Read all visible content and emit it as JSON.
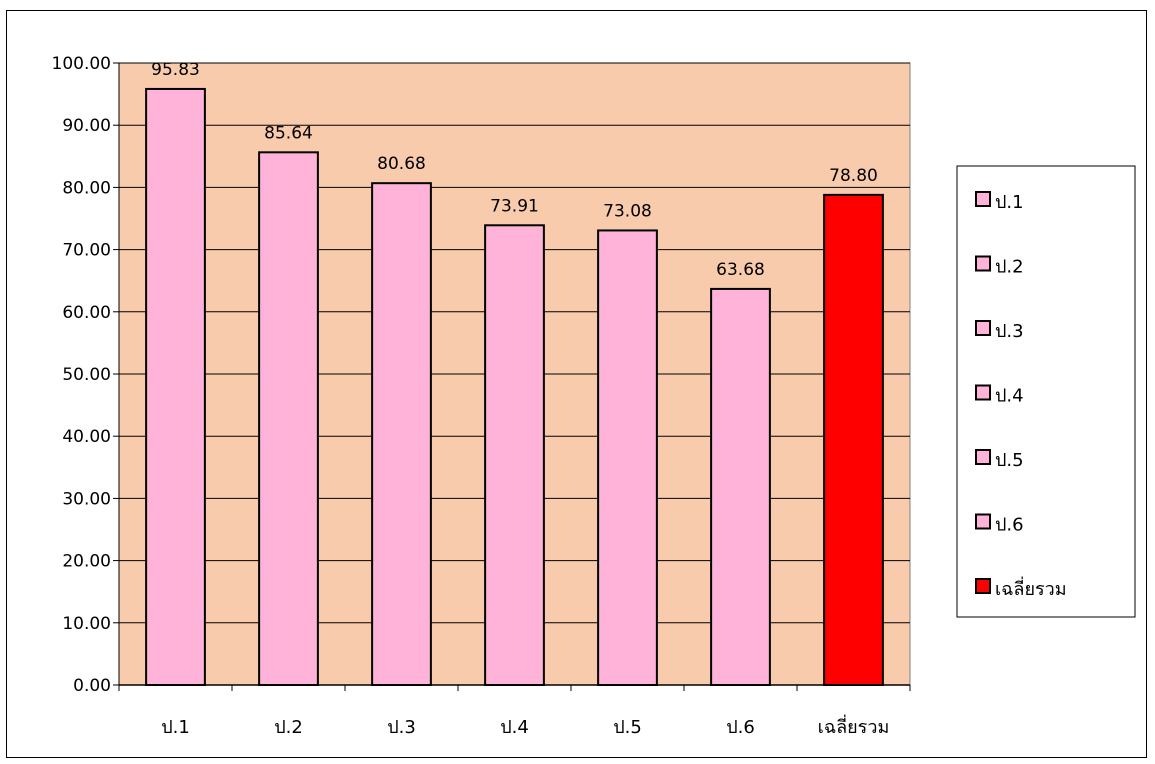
{
  "chart_data": {
    "type": "bar",
    "title": "",
    "xlabel": "",
    "ylabel": "",
    "categories": [
      "ป.1",
      "ป.2",
      "ป.3",
      "ป.4",
      "ป.5",
      "ป.6",
      "เฉลี่ยรวม"
    ],
    "values": [
      95.83,
      85.64,
      80.68,
      73.91,
      73.08,
      63.68,
      78.8
    ],
    "value_labels": [
      "95.83",
      "85.64",
      "80.68",
      "73.91",
      "73.08",
      "63.68",
      "78.80"
    ],
    "ylim": [
      0,
      100
    ],
    "yticks": [
      0,
      10,
      20,
      30,
      40,
      50,
      60,
      70,
      80,
      90,
      100
    ],
    "ytick_labels": [
      "0.00",
      "10.00",
      "20.00",
      "30.00",
      "40.00",
      "50.00",
      "60.00",
      "70.00",
      "80.00",
      "90.00",
      "100.00"
    ],
    "grid": true,
    "legend": {
      "placement": "right",
      "entries": [
        "ป.1",
        "ป.2",
        "ป.3",
        "ป.4",
        "ป.5",
        "ป.6",
        "เฉลี่ยรวม"
      ]
    },
    "colors": {
      "plot_background": "#F8CBAD",
      "bar": "#FFB3D9",
      "bar_highlight": "#FF0000",
      "bar_outline": "#000000",
      "gridline": "#000000"
    },
    "bar_colors": [
      "#FFB3D9",
      "#FFB3D9",
      "#FFB3D9",
      "#FFB3D9",
      "#FFB3D9",
      "#FFB3D9",
      "#FF0000"
    ]
  }
}
